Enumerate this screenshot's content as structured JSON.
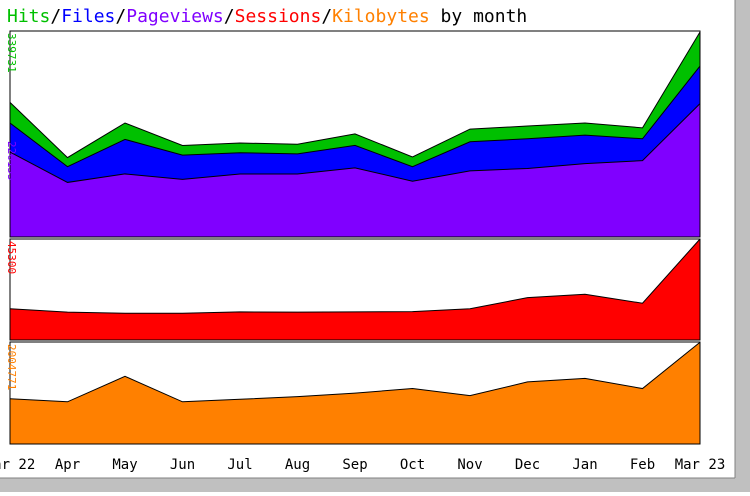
{
  "title": {
    "parts": [
      {
        "text": "Hits",
        "color": "#00c000"
      },
      {
        "text": "/",
        "color": "#000000"
      },
      {
        "text": "Files",
        "color": "#0000ff"
      },
      {
        "text": "/",
        "color": "#000000"
      },
      {
        "text": "Pageviews",
        "color": "#8000ff"
      },
      {
        "text": "/",
        "color": "#000000"
      },
      {
        "text": "Sessions",
        "color": "#ff0000"
      },
      {
        "text": "/",
        "color": "#000000"
      },
      {
        "text": "Kilobytes",
        "color": "#ff8000"
      },
      {
        "text": " by month",
        "color": "#000000"
      }
    ]
  },
  "chart_data": {
    "type": "area",
    "categories": [
      "Mar 22",
      "Apr",
      "May",
      "Jun",
      "Jul",
      "Aug",
      "Sep",
      "Oct",
      "Nov",
      "Dec",
      "Jan",
      "Feb",
      "Mar 23"
    ],
    "panels": [
      {
        "name": "hits-files-pageviews",
        "max_label": "339731",
        "mid_label": "226155",
        "ylim": [
          0,
          339731
        ],
        "series": [
          {
            "name": "Hits",
            "color": "#00c000",
            "values": [
              222000,
              131000,
              188000,
              151000,
              155000,
              153000,
              170000,
              132000,
              178000,
              183000,
              188000,
              180000,
              338000
            ]
          },
          {
            "name": "Files",
            "color": "#0000ff",
            "values": [
              188000,
              116000,
              161000,
              135000,
              139000,
              137000,
              151000,
              116000,
              157000,
              162000,
              168000,
              162000,
              282000
            ]
          },
          {
            "name": "Pageviews",
            "color": "#8000ff",
            "values": [
              140000,
              90000,
              104000,
              95000,
              104000,
              104000,
              114000,
              92000,
              109000,
              113000,
              121000,
              126000,
              220000
            ]
          }
        ]
      },
      {
        "name": "sessions",
        "max_label": "45300",
        "ylim": [
          0,
          45300
        ],
        "series": [
          {
            "name": "Sessions",
            "color": "#ff0000",
            "values": [
              14000,
              12500,
              12000,
              12000,
              12600,
              12500,
              12600,
              12700,
              14000,
              19000,
              20500,
              16500,
              45300
            ]
          }
        ]
      },
      {
        "name": "kilobytes",
        "max_label": "2004771",
        "ylim": [
          0,
          2004771
        ],
        "series": [
          {
            "name": "Kilobytes",
            "color": "#ff8000",
            "values": [
              890000,
              830000,
              1330000,
              830000,
              880000,
              930000,
              1000000,
              1090000,
              950000,
              1220000,
              1290000,
              1090000,
              2000000
            ]
          }
        ]
      }
    ],
    "grid": false,
    "legend": "title-top"
  },
  "colors": {
    "background": "#ffffff",
    "border": "#000000",
    "outer_frame": "#c0c0c0"
  }
}
